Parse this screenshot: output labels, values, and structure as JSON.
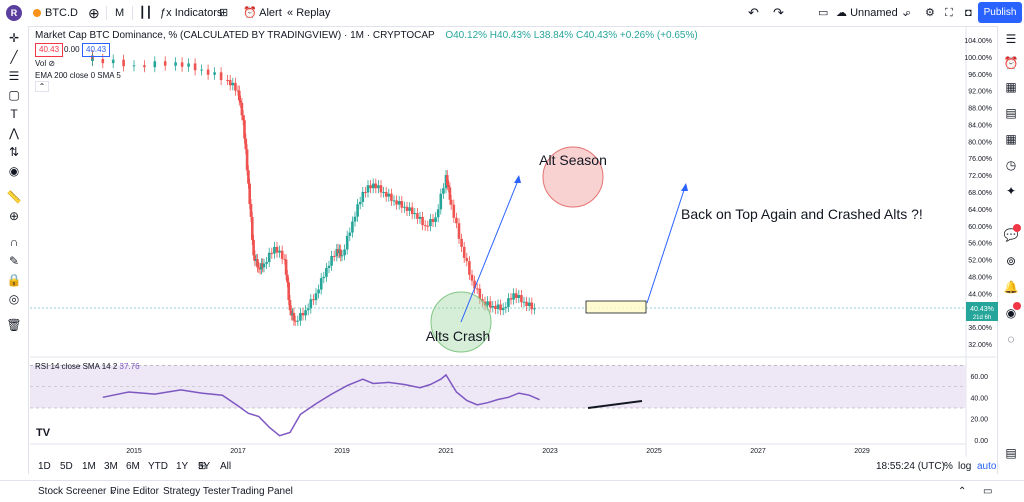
{
  "toolbar": {
    "symbol": "BTC.D",
    "interval": "M",
    "indicators": "Indicators",
    "alert": "Alert",
    "replay": "Replay",
    "layout_name": "Unnamed",
    "publish": "Publish"
  },
  "legend": {
    "title": "Market Cap BTC Dominance, % (CALCULATED BY TRADINGVIEW) · 1M · CRYPTOCAP",
    "ohlc": "O40.12% H40.43% L38.84% C40.43% +0.26% (+0.65%)",
    "price_box_1": "40.43",
    "price_box_mid": "0.00",
    "price_box_2": "40.43",
    "vol": "Vol",
    "ema": "EMA 200 close 0 SMA 5",
    "rsi": "RSI 14 close SMA 14 2",
    "rsi_value": "37.76"
  },
  "price_label": {
    "value": "40.43%",
    "countdown": "21d 6h"
  },
  "timeframes": [
    "1D",
    "5D",
    "1M",
    "3M",
    "6M",
    "YTD",
    "1Y",
    "5Y",
    "All"
  ],
  "time_display": "18:55:24 (UTC)",
  "scale_opts": {
    "pct": "%",
    "log": "log",
    "auto": "auto"
  },
  "footer": {
    "tabs": [
      "Stock Screener",
      "Pine Editor",
      "Strategy Tester",
      "Trading Panel"
    ]
  },
  "colors": {
    "up": "#26a69a",
    "down": "#ef5350",
    "rsi_line": "#7e57c2",
    "rsi_band": "#ede7f6",
    "accent": "#2962ff"
  },
  "chart_data": [
    {
      "type": "candlestick",
      "title": "Market Cap BTC Dominance, % (CALCULATED BY TRADINGVIEW)",
      "x_ticks": [
        "2015",
        "2017",
        "2019",
        "2021",
        "2023",
        "2025",
        "2027",
        "2029"
      ],
      "y_ticks": [
        "104.00%",
        "100.00%",
        "96.00%",
        "92.00%",
        "88.00%",
        "84.00%",
        "80.00%",
        "76.00%",
        "72.00%",
        "68.00%",
        "64.00%",
        "60.00%",
        "56.00%",
        "52.00%",
        "48.00%",
        "44.00%",
        "40.00%",
        "36.00%",
        "32.00%"
      ],
      "ylim": [
        30,
        106
      ],
      "x_range": [
        2013.0,
        2031.0
      ],
      "series": [
        {
          "x": [
            2014.2,
            2015.0,
            2015.8,
            2016.3,
            2016.8,
            2017.0,
            2017.1,
            2017.2,
            2017.3,
            2017.4,
            2017.5,
            2017.7,
            2017.9,
            2018.0,
            2018.1,
            2018.3,
            2018.5,
            2018.7,
            2018.9,
            2019.0,
            2019.2,
            2019.4,
            2019.6,
            2019.8,
            2020.0,
            2020.2,
            2020.4,
            2020.6,
            2020.8,
            2021.0,
            2021.1,
            2021.3,
            2021.5,
            2021.7,
            2021.9,
            2022.1,
            2022.3,
            2022.5,
            2022.7
          ],
          "close": [
            99.5,
            98.0,
            98.7,
            97.0,
            94.5,
            92.0,
            85.0,
            70.0,
            53.0,
            50.0,
            51.0,
            55.0,
            52.0,
            40.0,
            37.5,
            40.0,
            44.0,
            50.0,
            54.5,
            53.0,
            61.0,
            68.0,
            70.0,
            68.0,
            66.0,
            64.5,
            63.0,
            60.0,
            62.0,
            72.0,
            65.0,
            55.0,
            47.0,
            42.0,
            41.0,
            40.5,
            44.0,
            42.0,
            40.43
          ]
        }
      ],
      "annotations": [
        {
          "text": "Alt Season",
          "x": 2021.0,
          "y": 76.5
        },
        {
          "text": "Alts Crash",
          "x": 2018.0,
          "y": 35.0
        },
        {
          "text": "Back on Top Again and Crashed Alts ?!",
          "x": 2024.6,
          "y": 64.2
        }
      ]
    },
    {
      "type": "line",
      "title": "RSI 14 close SMA 14 2",
      "y_ticks": [
        "60.00",
        "40.00",
        "20.00",
        "0.00"
      ],
      "ylim": [
        0,
        70
      ],
      "band": [
        30,
        70
      ],
      "series": [
        {
          "name": "RSI",
          "x": [
            2014.4,
            2014.9,
            2015.4,
            2015.9,
            2016.3,
            2016.7,
            2017.0,
            2017.2,
            2017.4,
            2017.6,
            2017.8,
            2018.0,
            2018.2,
            2018.5,
            2018.8,
            2019.1,
            2019.4,
            2019.6,
            2019.9,
            2020.2,
            2020.5,
            2020.7,
            2020.9,
            2021.0,
            2021.2,
            2021.4,
            2021.6,
            2021.8,
            2022.0,
            2022.2,
            2022.4,
            2022.6,
            2022.8
          ],
          "values": [
            40,
            45,
            43,
            47,
            44,
            42,
            32,
            25,
            22,
            12,
            4,
            7,
            24,
            34,
            43,
            51,
            57,
            53,
            54,
            52,
            49,
            52,
            57,
            61,
            45,
            37,
            33,
            35,
            38,
            40,
            44,
            42,
            37.76
          ]
        }
      ]
    }
  ]
}
